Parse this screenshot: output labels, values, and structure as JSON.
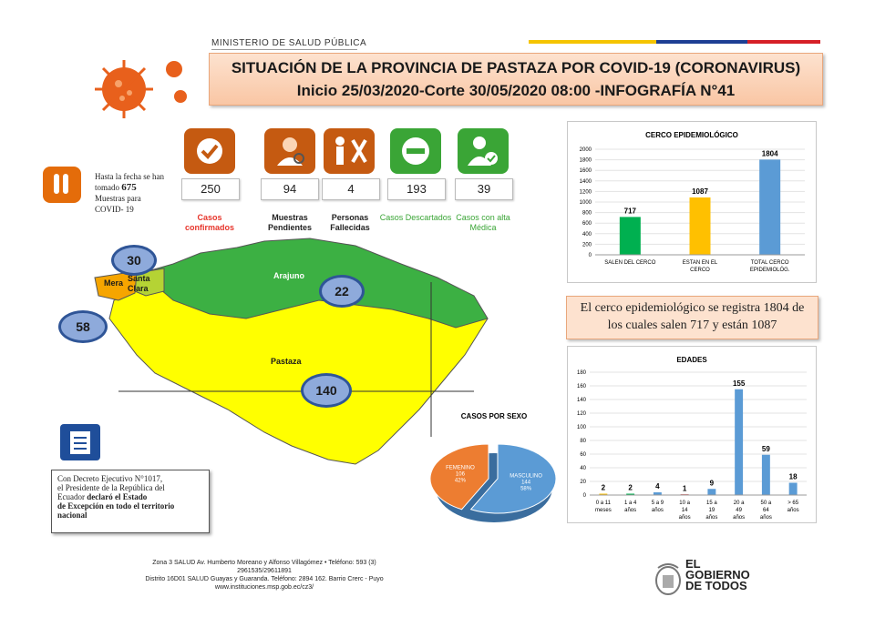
{
  "header": {
    "ministry": "MINISTERIO DE SALUD PÚBLICA",
    "title_line1": "SITUACIÓN DE LA PROVINCIA DE PASTAZA POR COVID-19 (CORONAVIRUS)",
    "title_line2": "Inicio 25/03/2020-Corte 30/05/2020 08:00 -INFOGRAFÍA N°41"
  },
  "stats": [
    {
      "value": "250",
      "label": "Casos confirmados",
      "color": "#e7352b",
      "icon": "check-icon"
    },
    {
      "value": "94",
      "label": "Muestras Pendientes",
      "color": "#222222",
      "icon": "doctor-icon"
    },
    {
      "value": "4",
      "label": "Personas Fallecidas",
      "color": "#222222",
      "icon": "deceased-icon"
    },
    {
      "value": "193",
      "label": "Casos Descartados",
      "color": "#3aa536",
      "icon": "minus-icon"
    },
    {
      "value": "39",
      "label": "Casos con alta Médica",
      "color": "#3aa536",
      "icon": "discharged-icon"
    }
  ],
  "tests": {
    "line1": "Hasta la fecha se han",
    "tomado": "tomado",
    "count": "675",
    "line3": "Muestras para",
    "line4": "COVID- 19"
  },
  "map": {
    "regions": [
      "Arajuno",
      "Pastaza",
      "Mera",
      "Santa",
      "Clara"
    ],
    "cases": {
      "santa_clara": "30",
      "mera": "58",
      "arajuno": "22",
      "pastaza": "140"
    }
  },
  "decree": {
    "line1": "Con Decreto Ejecutivo N°1017,",
    "line2": "el Presidente de la República del",
    "line3_a": "Ecuador ",
    "line3_b": "declaró el Estado",
    "line4": "de Excepción en todo el territorio",
    "line5": "nacional"
  },
  "note": {
    "line1": "El cerco epidemiológico se registra 1804 de",
    "line2": "los cuales salen 717 y están 1087"
  },
  "footer": {
    "line1": "Zona 3 SALUD Av. Humberto Moreano y Alfonso Villagómez • Teléfono: 593 (3)",
    "line2": "2961535/29611891",
    "line3": "Distrito 16D01 SALUD Guayas y Guaranda. Teléfono: 2894 162. Barrio Crerc - Puyo",
    "line4": "www.instituciones.msp.gob.ec/cz3/"
  },
  "government": {
    "line1": "EL",
    "line2": "GOBIERNO",
    "line3": "DE TODOS"
  },
  "colors": {
    "accent_orange": "#c55a11",
    "green": "#00b050",
    "yellow": "#ffc000",
    "blue": "#5b9bd5",
    "map_green": "#3cb043",
    "map_yellow": "#ffff00"
  },
  "chart_data": [
    {
      "type": "bar",
      "title": "CERCO EPIDEMIOLÓGICO",
      "categories": [
        "SALEN DEL CERCO",
        "ESTAN EN EL CERCO",
        "TOTAL CERCO EPIDEMIOLÓG."
      ],
      "values": [
        717,
        1087,
        1804
      ],
      "colors": [
        "#00b050",
        "#ffc000",
        "#5b9bd5"
      ],
      "ylim": [
        0,
        2000
      ],
      "yticks": [
        0,
        200,
        400,
        600,
        800,
        1000,
        1200,
        1400,
        1600,
        1800,
        2000
      ]
    },
    {
      "type": "bar",
      "title": "EDADES",
      "categories": [
        "0 a 11 meses",
        "1 a 4 años",
        "5 a 9 años",
        "10 a 14 años",
        "15 a 19 años",
        "20 a 49 años",
        "50 a 64 años",
        "> 65 años"
      ],
      "values": [
        2,
        2,
        4,
        1,
        9,
        155,
        59,
        18
      ],
      "colors": [
        "#ffc000",
        "#00b050",
        "#5b9bd5",
        "#c00000",
        "#5b9bd5",
        "#5b9bd5",
        "#5b9bd5",
        "#5b9bd5"
      ],
      "ylim": [
        0,
        180
      ],
      "yticks": [
        0,
        20,
        40,
        60,
        80,
        100,
        120,
        140,
        160,
        180
      ]
    },
    {
      "type": "pie",
      "title": "CASOS POR SEXO",
      "slices": [
        {
          "name": "FEMENINO",
          "value": 106,
          "percent": "42%",
          "color": "#ed7d31"
        },
        {
          "name": "MASCULINO",
          "value": 144,
          "percent": "58%",
          "color": "#5b9bd5"
        }
      ]
    }
  ]
}
